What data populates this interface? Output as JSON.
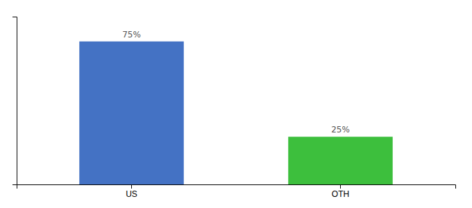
{
  "chart_data": {
    "type": "bar",
    "categories": [
      "US",
      "OTH"
    ],
    "values": [
      75,
      25
    ],
    "value_labels": [
      "75%",
      "25%"
    ],
    "colors": [
      "#4472c4",
      "#3dbf3d"
    ],
    "ylim": [
      0,
      88
    ],
    "data_labels": true,
    "tick_labels": "x"
  }
}
